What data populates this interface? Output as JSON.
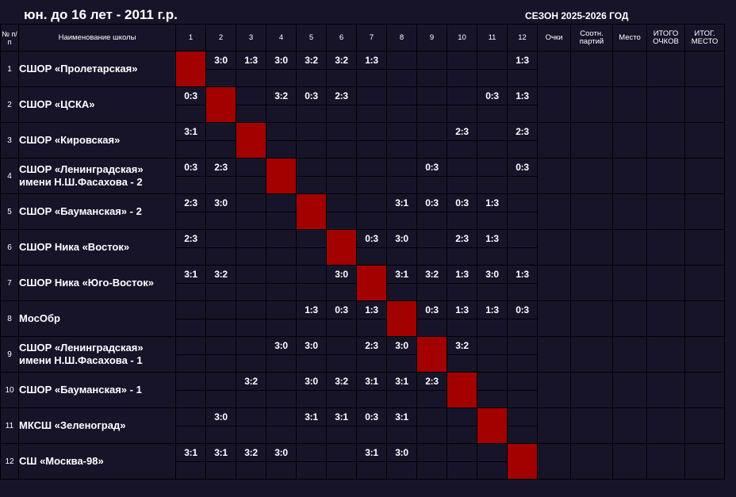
{
  "header": {
    "title": "юн. до 16 лет - 2011 г.р.",
    "season": "СЕЗОН 2025-2026 ГОД"
  },
  "columns": {
    "num": "№ п/п",
    "school": "Наименование школы",
    "opponents": [
      "1",
      "2",
      "3",
      "4",
      "5",
      "6",
      "7",
      "8",
      "9",
      "10",
      "11",
      "12"
    ],
    "points": "Очки",
    "ratio": "Соотн. партий",
    "place": "Место",
    "total_points": "ИТОГО ОЧКОВ",
    "final_place": "ИТОГ. МЕСТО"
  },
  "rows": [
    {
      "num": "1",
      "name": "СШОР «Пролетарская»",
      "scores": [
        "",
        "3:0",
        "1:3",
        "3:0",
        "3:2",
        "3:2",
        "1:3",
        "",
        "",
        "",
        "",
        "1:3"
      ]
    },
    {
      "num": "2",
      "name": "СШОР «ЦСКА»",
      "scores": [
        "0:3",
        "",
        "",
        "3:2",
        "0:3",
        "2:3",
        "",
        "",
        "",
        "",
        "0:3",
        "1:3"
      ]
    },
    {
      "num": "3",
      "name": "СШОР «Кировская»",
      "scores": [
        "3:1",
        "",
        "",
        "",
        "",
        "",
        "",
        "",
        "",
        "2:3",
        "",
        "2:3"
      ]
    },
    {
      "num": "4",
      "name": "СШОР «Ленинградская» имени Н.Ш.Фасахова - 2",
      "scores": [
        "0:3",
        "2:3",
        "",
        "",
        "",
        "",
        "",
        "",
        "0:3",
        "",
        "",
        "0:3"
      ]
    },
    {
      "num": "5",
      "name": "СШОР «Бауманская» - 2",
      "scores": [
        "2:3",
        "3:0",
        "",
        "",
        "",
        "",
        "",
        "3:1",
        "0:3",
        "0:3",
        "1:3",
        ""
      ]
    },
    {
      "num": "6",
      "name": "СШОР Ника «Восток»",
      "scores": [
        "2:3",
        "",
        "",
        "",
        "",
        "",
        "0:3",
        "3:0",
        "",
        "2:3",
        "1:3",
        ""
      ]
    },
    {
      "num": "7",
      "name": "СШОР Ника «Юго-Восток»",
      "scores": [
        "3:1",
        "3:2",
        "",
        "",
        "",
        "3:0",
        "",
        "3:1",
        "3:2",
        "1:3",
        "3:0",
        "1:3"
      ]
    },
    {
      "num": "8",
      "name": "МосОбр",
      "scores": [
        "",
        "",
        "",
        "",
        "1:3",
        "0:3",
        "1:3",
        "",
        "0:3",
        "1:3",
        "1:3",
        "0:3"
      ]
    },
    {
      "num": "9",
      "name": "СШОР «Ленинградская» имени Н.Ш.Фасахова - 1",
      "scores": [
        "",
        "",
        "",
        "3:0",
        "3:0",
        "",
        "2:3",
        "3:0",
        "",
        "3:2",
        "",
        ""
      ]
    },
    {
      "num": "10",
      "name": "СШОР «Бауманская» - 1",
      "scores": [
        "",
        "",
        "3:2",
        "",
        "3:0",
        "3:2",
        "3:1",
        "3:1",
        "2:3",
        "",
        "",
        ""
      ]
    },
    {
      "num": "11",
      "name": "МКСШ «Зеленоград»",
      "scores": [
        "",
        "3:0",
        "",
        "",
        "3:1",
        "3:1",
        "0:3",
        "3:1",
        "",
        "",
        "",
        ""
      ]
    },
    {
      "num": "12",
      "name": "СШ «Москва-98»",
      "scores": [
        "3:1",
        "3:1",
        "3:2",
        "3:0",
        "",
        "",
        "3:1",
        "3:0",
        "",
        "",
        "",
        ""
      ]
    }
  ],
  "colors": {
    "background": "#17142a",
    "diagonal": "#a30000",
    "grid_line": "#000000",
    "text": "#ffffff"
  }
}
